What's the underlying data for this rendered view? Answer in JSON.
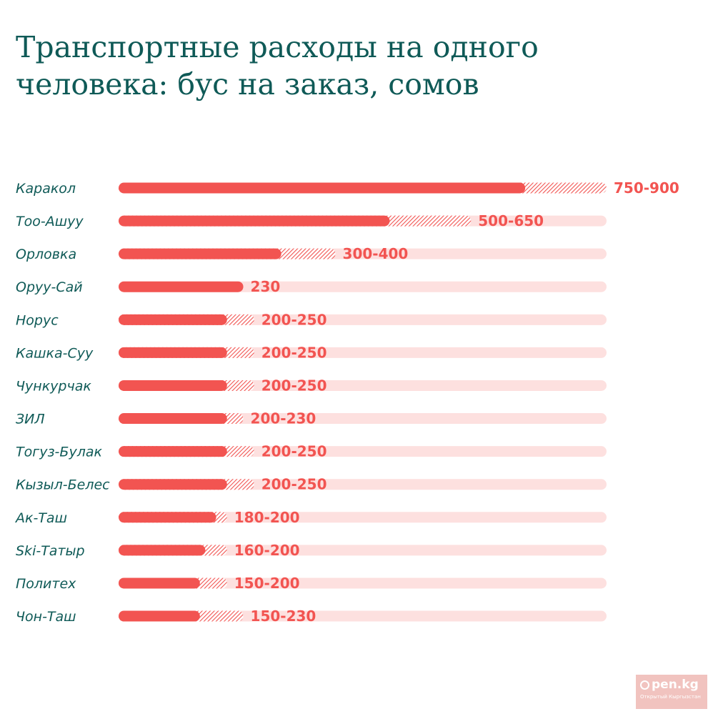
{
  "title": "Транспортные расходы на одного человека: бус на заказ, сомов",
  "logo": {
    "brand": "pen.kg",
    "tagline": "Открытый Кыргызстан"
  },
  "colors": {
    "title": "#0f5a57",
    "bar": "#f25451",
    "track": "#fde0df",
    "label": "#f25451"
  },
  "chart_data": {
    "type": "bar",
    "orientation": "horizontal",
    "title": "Транспортные расходы на одного человека: бус на заказ, сомов",
    "xlim": [
      0,
      900
    ],
    "grid": false,
    "categories": [
      "Каракол",
      "Тоо-Ашуу",
      "Орловка",
      "Оруу-Сай",
      "Норус",
      "Кашка-Суу",
      "Чункурчак",
      "ЗИЛ",
      "Тогуз-Булак",
      "Кызыл-Белес",
      "Ак-Таш",
      "Ski-Татыр",
      "Политех",
      "Чон-Таш"
    ],
    "min_values": [
      750,
      500,
      300,
      230,
      200,
      200,
      200,
      200,
      200,
      200,
      180,
      160,
      150,
      150
    ],
    "max_values": [
      900,
      650,
      400,
      230,
      250,
      250,
      250,
      230,
      250,
      250,
      200,
      200,
      200,
      230
    ],
    "value_labels": [
      "750-900",
      "500-650",
      "300-400",
      "230",
      "200-250",
      "200-250",
      "200-250",
      "200-230",
      "200-250",
      "200-250",
      "180-200",
      "160-200",
      "150-200",
      "150-230"
    ]
  }
}
